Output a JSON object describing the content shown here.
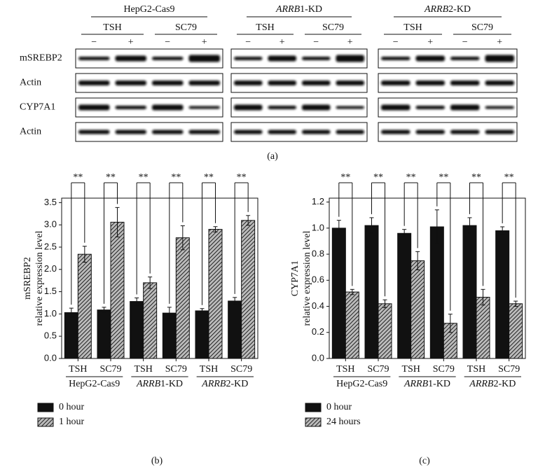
{
  "blot": {
    "groups": [
      "HepG2-Cas9",
      "ARRB1-KD",
      "ARRB2-KD"
    ],
    "treatments": [
      "TSH",
      "SC79"
    ],
    "signs": [
      "−",
      "+"
    ],
    "rows": [
      "mSREBP2",
      "Actin",
      "CYP7A1",
      "Actin"
    ],
    "caption": "(a)"
  },
  "chart_data": [
    {
      "type": "bar",
      "ylabel": [
        "mSREBP2",
        "relative expression level"
      ],
      "categories": [
        "TSH",
        "SC79",
        "TSH",
        "SC79",
        "TSH",
        "SC79"
      ],
      "groups": [
        "HepG2-Cas9",
        "ARRB1-KD",
        "ARRB2-KD"
      ],
      "series": [
        {
          "name": "0 hour",
          "color": "#111111",
          "hatch": false,
          "values": [
            1.03,
            1.09,
            1.28,
            1.02,
            1.07,
            1.29
          ],
          "errors": [
            0.1,
            0.06,
            0.08,
            0.13,
            0.05,
            0.08
          ]
        },
        {
          "name": "1 hour",
          "color": "#333333",
          "hatch": true,
          "values": [
            2.34,
            3.06,
            1.7,
            2.71,
            2.9,
            3.1
          ],
          "errors": [
            0.18,
            0.33,
            0.13,
            0.27,
            0.06,
            0.11
          ]
        }
      ],
      "significance": [
        "**",
        "**",
        "**",
        "**",
        "**",
        "**"
      ],
      "ylim": [
        0,
        3.6
      ],
      "yticks": [
        {
          "value": 0,
          "label": "0.0"
        },
        0.5,
        {
          "value": 1,
          "label": "1.0"
        },
        1.5,
        {
          "value": 2,
          "label": "2.0"
        },
        2.5,
        {
          "value": 3,
          "label": "3.0"
        },
        3.5
      ],
      "caption": "(b)"
    },
    {
      "type": "bar",
      "ylabel": [
        "CYP7A1",
        "relative expression level"
      ],
      "categories": [
        "TSH",
        "SC79",
        "TSH",
        "SC79",
        "TSH",
        "SC79"
      ],
      "groups": [
        "HepG2-Cas9",
        "ARRB1-KD",
        "ARRB2-KD"
      ],
      "series": [
        {
          "name": "0 hour",
          "color": "#111111",
          "hatch": false,
          "values": [
            1.0,
            1.02,
            0.96,
            1.01,
            1.02,
            0.98
          ],
          "errors": [
            0.06,
            0.06,
            0.03,
            0.13,
            0.06,
            0.03
          ]
        },
        {
          "name": "24 hours",
          "color": "#333333",
          "hatch": true,
          "values": [
            0.51,
            0.42,
            0.75,
            0.27,
            0.47,
            0.42
          ],
          "errors": [
            0.02,
            0.03,
            0.07,
            0.07,
            0.06,
            0.02
          ]
        }
      ],
      "significance": [
        "**",
        "**",
        "**",
        "**",
        "**",
        "**"
      ],
      "ylim": [
        0,
        1.23
      ],
      "yticks": [
        {
          "value": 0,
          "label": "0.0"
        },
        0.2,
        0.4,
        0.6,
        0.8,
        {
          "value": 1,
          "label": "1.0"
        },
        1.2
      ],
      "caption": "(c)"
    }
  ]
}
